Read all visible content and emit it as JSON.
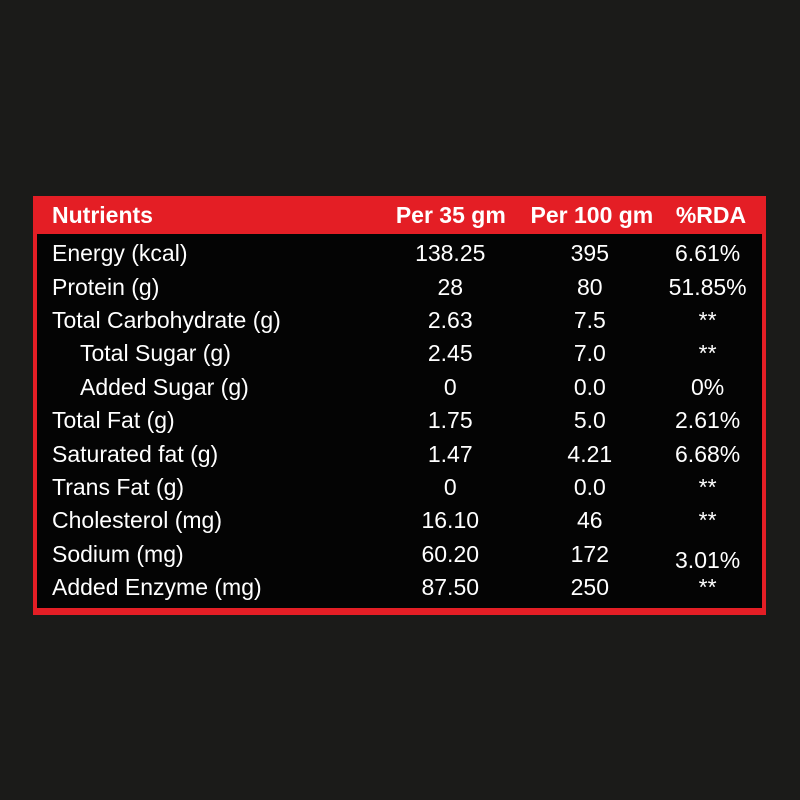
{
  "page": {
    "background": "#1b1b19"
  },
  "table": {
    "accent_color": "#e41e25",
    "body_background": "#040404",
    "text_color": "#ffffff",
    "headers": [
      "Nutrients",
      "Per 35 gm",
      "Per 100 gm",
      "%RDA"
    ],
    "rows": [
      {
        "nutrient": "Energy (kcal)",
        "per_35gm": "138.25",
        "per_100gm": "395",
        "rda": "6.61%",
        "indent": false
      },
      {
        "nutrient": "Protein (g)",
        "per_35gm": "28",
        "per_100gm": "80",
        "rda": "51.85%",
        "indent": false
      },
      {
        "nutrient": "Total Carbohydrate (g)",
        "per_35gm": "2.63",
        "per_100gm": "7.5",
        "rda": "**",
        "indent": false
      },
      {
        "nutrient": "Total Sugar (g)",
        "per_35gm": "2.45",
        "per_100gm": "7.0",
        "rda": "**",
        "indent": true
      },
      {
        "nutrient": "Added Sugar (g)",
        "per_35gm": "0",
        "per_100gm": "0.0",
        "rda": "0%",
        "indent": true
      },
      {
        "nutrient": "Total Fat (g)",
        "per_35gm": "1.75",
        "per_100gm": "5.0",
        "rda": "2.61%",
        "indent": false
      },
      {
        "nutrient": "Saturated fat (g)",
        "per_35gm": "1.47",
        "per_100gm": "4.21",
        "rda": "6.68%",
        "indent": false
      },
      {
        "nutrient": "Trans Fat (g)",
        "per_35gm": "0",
        "per_100gm": "0.0",
        "rda": "**",
        "indent": false
      },
      {
        "nutrient": "Cholesterol (mg)",
        "per_35gm": "16.10",
        "per_100gm": "46",
        "rda": "**",
        "indent": false
      },
      {
        "nutrient": "Sodium (mg)",
        "per_35gm": "60.20",
        "per_100gm": "172",
        "rda": "3.01%",
        "indent": false
      },
      {
        "nutrient": "Added Enzyme (mg)",
        "per_35gm": "87.50",
        "per_100gm": "250",
        "rda": "**",
        "indent": false
      }
    ]
  }
}
